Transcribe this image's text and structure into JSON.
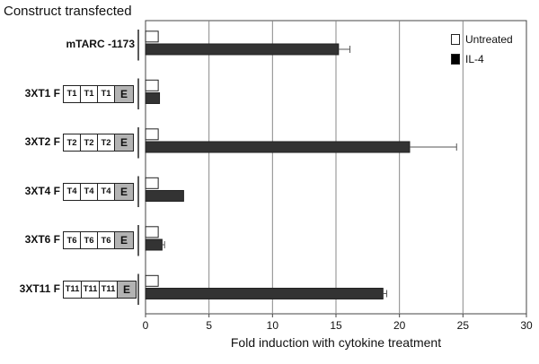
{
  "heading": "Construct transfected",
  "legend": [
    {
      "label": "Untreated",
      "color": "#ffffff"
    },
    {
      "label": "IL-4",
      "color": "#000000"
    }
  ],
  "colors": {
    "untreated": "#ffffff",
    "il4": "#333333",
    "enhancer_box": "#b3b3b3"
  },
  "constructs": [
    {
      "label": "mTARC -1173",
      "boxes": []
    },
    {
      "label": "3XT1 F",
      "boxes": [
        "T1",
        "T1",
        "T1",
        "E"
      ]
    },
    {
      "label": "3XT2 F",
      "boxes": [
        "T2",
        "T2",
        "T2",
        "E"
      ]
    },
    {
      "label": "3XT4 F",
      "boxes": [
        "T4",
        "T4",
        "T4",
        "E"
      ]
    },
    {
      "label": "3XT6 F",
      "boxes": [
        "T6",
        "T6",
        "T6",
        "E"
      ]
    },
    {
      "label": "3XT11 F",
      "boxes": [
        "T11",
        "T11",
        "T11",
        "E"
      ]
    }
  ],
  "chart_data": {
    "type": "bar",
    "orientation": "horizontal",
    "categories": [
      "mTARC -1173",
      "3XT1 F",
      "3XT2 F",
      "3XT4 F",
      "3XT6 F",
      "3XT11 F"
    ],
    "series": [
      {
        "name": "Untreated",
        "values": [
          1,
          1,
          1,
          1,
          1,
          1
        ],
        "errors": [
          0,
          0,
          0,
          0,
          0,
          0
        ]
      },
      {
        "name": "IL-4",
        "values": [
          15.2,
          1.1,
          20.8,
          3.0,
          1.3,
          18.7
        ],
        "errors": [
          0.9,
          0,
          3.7,
          0,
          0.2,
          0.3
        ]
      }
    ],
    "xlabel": "Fold induction with cytokine treatment",
    "ylabel": "",
    "xlim": [
      0,
      30
    ],
    "xticks": [
      "0",
      "5",
      "10",
      "15",
      "20",
      "25",
      "30"
    ],
    "grid": "vertical",
    "legend_position": "top-right"
  }
}
